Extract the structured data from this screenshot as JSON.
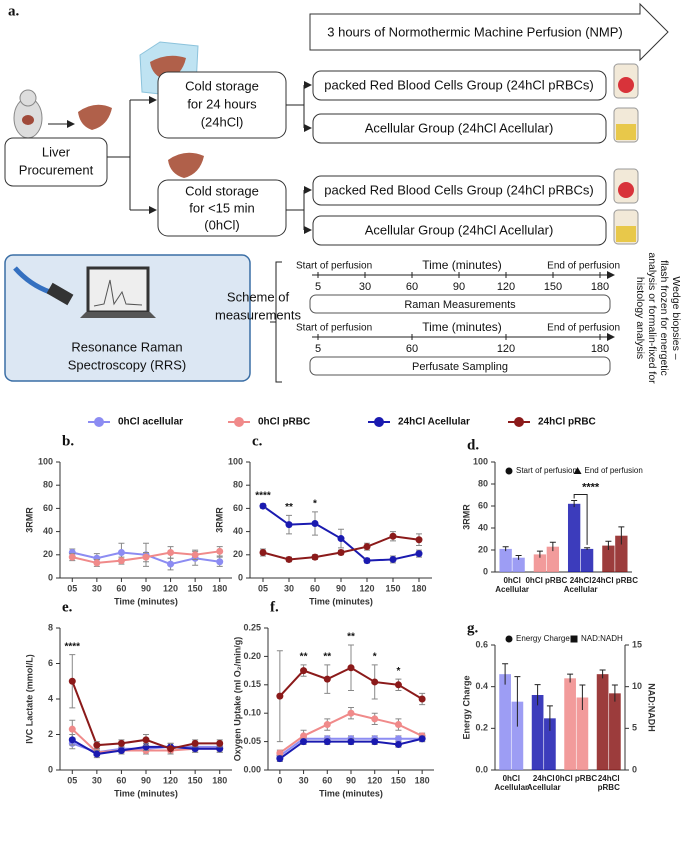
{
  "diagram": {
    "label": "a.",
    "nmp": "3 hours of Normothermic Machine Perfusion (NMP)",
    "procurement": [
      "Liver",
      "Procurement"
    ],
    "storage_24h": [
      "Cold storage",
      "for 24 hours",
      "(24hCl)"
    ],
    "storage_0h": [
      "Cold storage",
      "for <15 min",
      "(0hCl)"
    ],
    "groups": [
      "packed Red Blood Cells Group (24hCl pRBCs)",
      "Acellular Group (24hCl Acellular)",
      "packed Red Blood Cells Group (24hCl pRBCs)",
      "Acellular Group (24hCl Acellular)"
    ],
    "rrs": [
      "Resonance Raman",
      "Spectroscopy (RRS)"
    ],
    "scheme": [
      "Scheme of",
      "measurements"
    ],
    "timelines": [
      {
        "start": "Start of perfusion",
        "axis": "Time (minutes)",
        "end": "End of perfusion",
        "ticks": [
          5,
          30,
          60,
          90,
          120,
          150,
          180
        ],
        "label": "Raman Measurements"
      },
      {
        "start": "Start of perfusion",
        "axis": "Time (minutes)",
        "end": "End of perfusion",
        "ticks": [
          5,
          60,
          120,
          180
        ],
        "label": "Perfusate Sampling"
      }
    ],
    "biopsies": [
      "Wedge biopsies –",
      "flash frozen for energetic",
      "analysis or formalin-fixed for",
      "histology analysis"
    ]
  },
  "chart_data": [
    {
      "type": "line",
      "label": "b.",
      "ylabel": "3RMR",
      "xlabel": "Time (minutes)",
      "categories": [
        "05",
        "30",
        "60",
        "90",
        "120",
        "150",
        "180"
      ],
      "ylim": [
        0,
        100
      ],
      "yticks": [
        0,
        20,
        40,
        60,
        80,
        100
      ],
      "series": [
        {
          "color": "#8c8cf2",
          "values": [
            22,
            17,
            22,
            20,
            12,
            17,
            14
          ],
          "errors": [
            3,
            4,
            8,
            10,
            5,
            6,
            4
          ]
        },
        {
          "color": "#f08a8a",
          "values": [
            18,
            13,
            15,
            18,
            22,
            20,
            23
          ],
          "errors": [
            3,
            3,
            3,
            4,
            5,
            4,
            4
          ]
        }
      ]
    },
    {
      "type": "line",
      "label": "c.",
      "ylabel": "3RMR",
      "xlabel": "Time (minutes)",
      "categories": [
        "05",
        "30",
        "60",
        "90",
        "120",
        "150",
        "180"
      ],
      "ylim": [
        0,
        100
      ],
      "yticks": [
        0,
        20,
        40,
        60,
        80,
        100
      ],
      "series": [
        {
          "color": "#1a1ab0",
          "values": [
            62,
            46,
            47,
            34,
            15,
            16,
            21
          ],
          "errors": [
            2,
            8,
            10,
            8,
            2,
            3,
            3
          ]
        },
        {
          "color": "#8b1a1a",
          "values": [
            22,
            16,
            18,
            22,
            27,
            36,
            33
          ],
          "errors": [
            3,
            2,
            2,
            2,
            3,
            4,
            5
          ]
        }
      ],
      "annotations": [
        {
          "text": "****",
          "category": "05"
        },
        {
          "text": "**",
          "category": "30"
        },
        {
          "text": "*",
          "category": "60"
        }
      ]
    },
    {
      "type": "bar",
      "label": "d.",
      "ylabel": "3RMR",
      "categories": [
        "0hCl Acellular",
        "0hCl pRBC",
        "24hCl Acellular",
        "24hCl pRBC"
      ],
      "colors": [
        "#8c8cf2",
        "#f08a8a",
        "#1a1ab0",
        "#8b1a1a"
      ],
      "ylim": [
        0,
        100
      ],
      "yticks": [
        0,
        20,
        40,
        60,
        80,
        100
      ],
      "series": [
        {
          "name": "Start of perfusion",
          "marker": "circle",
          "values": [
            21,
            16,
            62,
            24
          ],
          "errors": [
            2,
            3,
            3,
            4
          ]
        },
        {
          "name": "End of perfusion",
          "marker": "triangle",
          "values": [
            13,
            23,
            21,
            33
          ],
          "errors": [
            2,
            4,
            1,
            8
          ]
        }
      ],
      "annotations": [
        {
          "text": "****",
          "category": "24hCl Acellular"
        }
      ]
    },
    {
      "type": "line",
      "label": "e.",
      "ylabel": "IVC Lactate (mmol/L)",
      "xlabel": "Time (minutes)",
      "categories": [
        "05",
        "30",
        "60",
        "90",
        "120",
        "150",
        "180"
      ],
      "ylim": [
        0,
        8
      ],
      "yticks": [
        0,
        2,
        4,
        6,
        8
      ],
      "series": [
        {
          "name": "0hCl acellular",
          "color": "#8c8cf2",
          "values": [
            1.5,
            1.0,
            1.2,
            1.2,
            1.3,
            1.3,
            1.3
          ],
          "errors": [
            0.3,
            0.2,
            0.2,
            0.3,
            0.2,
            0.2,
            0.2
          ]
        },
        {
          "name": "0hCl pRBC",
          "color": "#f08a8a",
          "values": [
            2.3,
            1.0,
            1.1,
            1.1,
            1.1,
            1.2,
            1.2
          ],
          "errors": [
            0.5,
            0.2,
            0.2,
            0.2,
            0.2,
            0.2,
            0.2
          ]
        },
        {
          "name": "24hCl Acellular",
          "color": "#1a1ab0",
          "values": [
            1.7,
            0.9,
            1.1,
            1.3,
            1.3,
            1.2,
            1.2
          ],
          "errors": [
            0.3,
            0.2,
            0.2,
            0.2,
            0.2,
            0.2,
            0.2
          ]
        },
        {
          "name": "24hCl pRBC",
          "color": "#8b1a1a",
          "values": [
            5.0,
            1.4,
            1.5,
            1.7,
            1.2,
            1.5,
            1.5
          ],
          "errors": [
            1.5,
            0.2,
            0.2,
            0.3,
            0.3,
            0.2,
            0.2
          ]
        }
      ],
      "annotations": [
        {
          "text": "****",
          "category": "05"
        }
      ]
    },
    {
      "type": "line",
      "label": "f.",
      "ylabel": "Oxygen Uptake (ml O₂/min/g)",
      "xlabel": "Time (minutes)",
      "categories": [
        "0",
        "30",
        "60",
        "90",
        "120",
        "150",
        "180"
      ],
      "ylim": [
        0,
        0.25
      ],
      "yticks": [
        {
          "value": 0,
          "label": "0.00"
        },
        0.05,
        {
          "value": 0.1,
          "label": "0.10"
        },
        0.15,
        {
          "value": 0.2,
          "label": "0.20"
        },
        0.25
      ],
      "series": [
        {
          "color": "#8c8cf2",
          "values": [
            0.025,
            0.055,
            0.055,
            0.055,
            0.055,
            0.055,
            0.055
          ],
          "errors": [
            0.005,
            0.005,
            0.005,
            0.005,
            0.005,
            0.005,
            0.005
          ]
        },
        {
          "color": "#f08a8a",
          "values": [
            0.03,
            0.06,
            0.08,
            0.1,
            0.09,
            0.08,
            0.06
          ],
          "errors": [
            0.005,
            0.01,
            0.01,
            0.01,
            0.01,
            0.01,
            0.005
          ]
        },
        {
          "color": "#1a1ab0",
          "values": [
            0.02,
            0.05,
            0.05,
            0.05,
            0.05,
            0.045,
            0.055
          ],
          "errors": [
            0.005,
            0.005,
            0.005,
            0.005,
            0.005,
            0.005,
            0.005
          ]
        },
        {
          "color": "#8b1a1a",
          "values": [
            0.13,
            0.175,
            0.16,
            0.18,
            0.155,
            0.15,
            0.125
          ],
          "errors": [
            0.08,
            0.01,
            0.025,
            0.04,
            0.03,
            0.01,
            0.01
          ]
        }
      ],
      "annotations": [
        {
          "text": "**",
          "category": "30"
        },
        {
          "text": "**",
          "category": "60"
        },
        {
          "text": "**",
          "category": "90"
        },
        {
          "text": "*",
          "category": "120"
        },
        {
          "text": "*",
          "category": "150"
        }
      ]
    },
    {
      "type": "bar",
      "label": "g.",
      "ylabel": "Energy Charge",
      "y2label": "NAD:NADH",
      "categories": [
        "0hCl Acellular",
        "24hCl Acellular",
        "0hCl pRBC",
        "24hCl pRBC"
      ],
      "colors": [
        "#8c8cf2",
        "#1a1ab0",
        "#f08a8a",
        "#8b1a1a"
      ],
      "ylim": [
        0,
        0.6
      ],
      "yticks": [
        {
          "value": 0,
          "label": "0.0"
        },
        0.2,
        0.4,
        0.6
      ],
      "y2lim": [
        0,
        15
      ],
      "y2ticks": [
        0,
        5,
        10,
        15
      ],
      "series": [
        {
          "name": "Energy Charge",
          "marker": "circle",
          "values": [
            0.46,
            0.36,
            0.44,
            0.46
          ],
          "errors": [
            0.05,
            0.05,
            0.02,
            0.02
          ]
        },
        {
          "name": "NAD:NADH",
          "marker": "square",
          "axis": "y2",
          "values": [
            8.2,
            6.2,
            8.7,
            9.2
          ],
          "errors": [
            3,
            1.5,
            1.5,
            1
          ]
        }
      ]
    }
  ]
}
